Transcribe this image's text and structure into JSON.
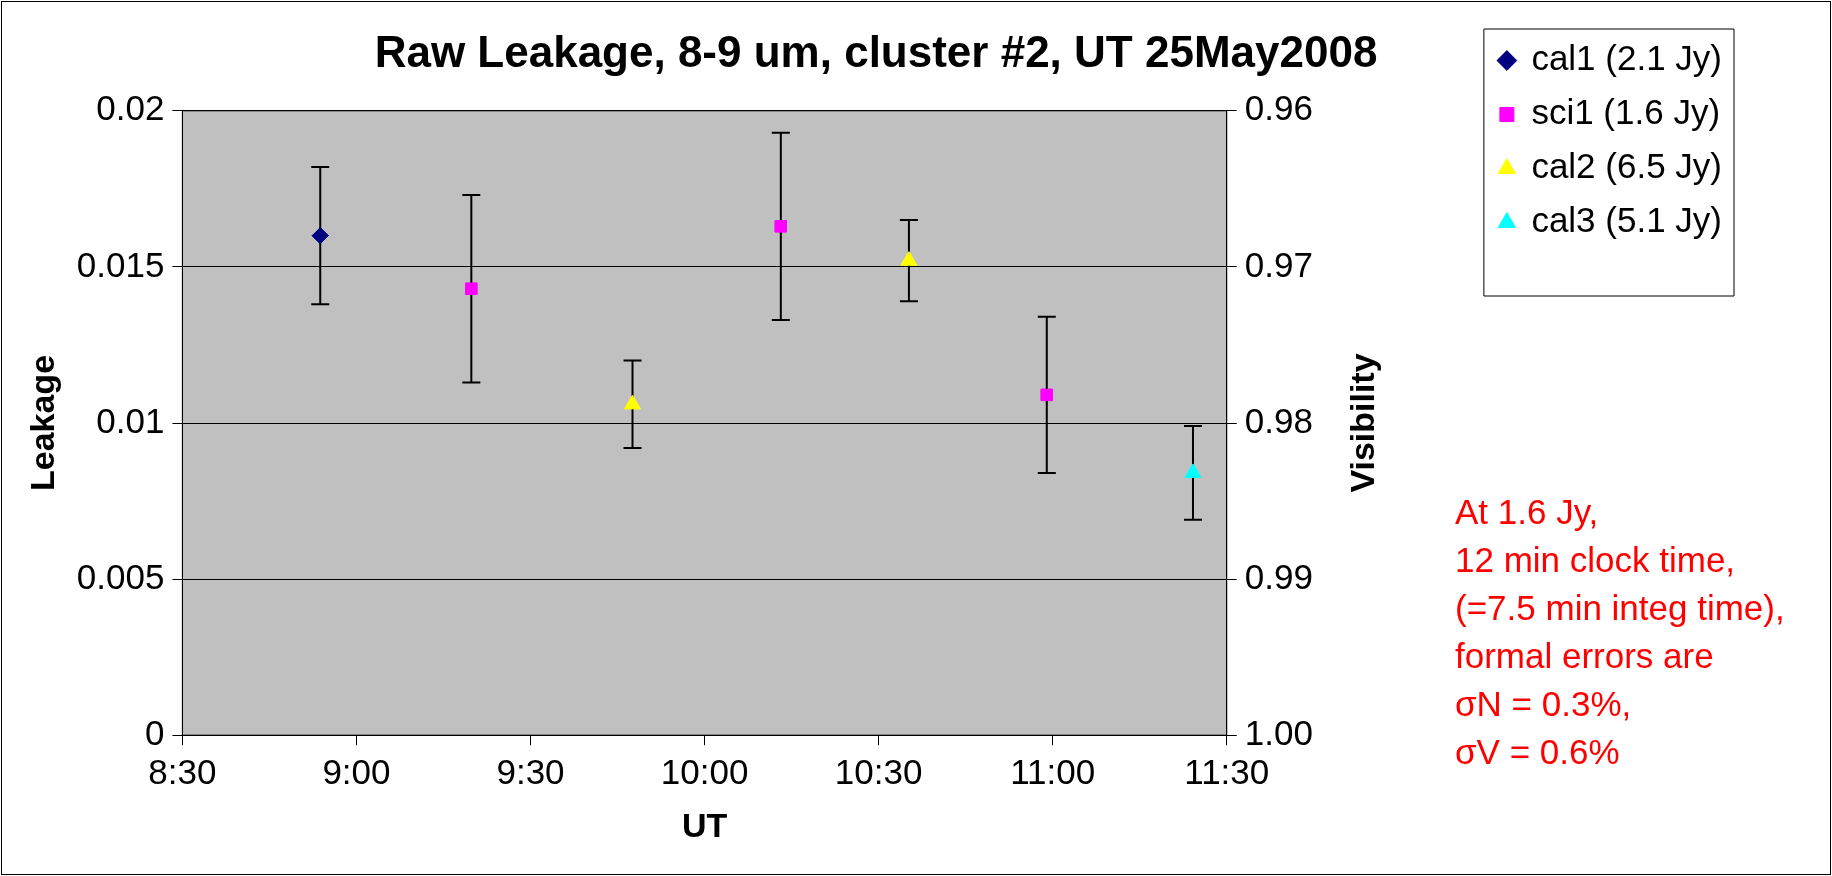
{
  "chart_data": {
    "type": "scatter",
    "title": "Raw Leakage, 8-9 um, cluster #2, UT 25May2008",
    "xlabel": "UT",
    "ylabel": "Leakage",
    "y2label": "Visibility",
    "series": [
      {
        "name": "cal1 (2.1 Jy)",
        "color": "#000080",
        "marker": "diamond",
        "x": [
          8.896
        ],
        "values": [
          0.016
        ],
        "errors": [
          0.0022
        ]
      },
      {
        "name": "sci1 (1.6 Jy)",
        "color": "#ff00ff",
        "marker": "square",
        "x": [
          9.33,
          10.219,
          10.983
        ],
        "values": [
          0.0143,
          0.0163,
          0.0109
        ],
        "errors": [
          0.003,
          0.003,
          0.0025
        ]
      },
      {
        "name": "cal2 (6.5 Jy)",
        "color": "#ffff00",
        "marker": "triangle",
        "x": [
          9.793,
          10.587
        ],
        "values": [
          0.0106,
          0.0152
        ],
        "errors": [
          0.0014,
          0.0013
        ]
      },
      {
        "name": "cal3 (5.1 Jy)",
        "color": "#00ffff",
        "marker": "triangle",
        "x": [
          11.403
        ],
        "values": [
          0.0084
        ],
        "errors": [
          0.0015
        ]
      }
    ],
    "xlim": [
      8.5,
      11.5
    ],
    "xticks": [
      {
        "value": 8.5,
        "label": "8:30"
      },
      {
        "value": 9,
        "label": "9:00"
      },
      {
        "value": 9.5,
        "label": "9:30"
      },
      {
        "value": 10,
        "label": "10:00"
      },
      {
        "value": 10.5,
        "label": "10:30"
      },
      {
        "value": 11,
        "label": "11:00"
      },
      {
        "value": 11.5,
        "label": "11:30"
      }
    ],
    "ylim": [
      0,
      0.02
    ],
    "yticks": [
      0,
      0.005,
      0.01,
      0.015,
      0.02
    ],
    "y2lim": [
      1.0,
      0.96
    ],
    "y2ticks": [
      {
        "value": 1,
        "label": "1.00"
      },
      0.99,
      0.98,
      0.97,
      0.96
    ],
    "grid": "y",
    "legend": "right",
    "annotations": [
      "At 1.6 Jy,\n12 min clock time,\n(=7.5 min integ time),\nformal errors are\nσN = 0.3%,\nσV = 0.6%"
    ]
  }
}
